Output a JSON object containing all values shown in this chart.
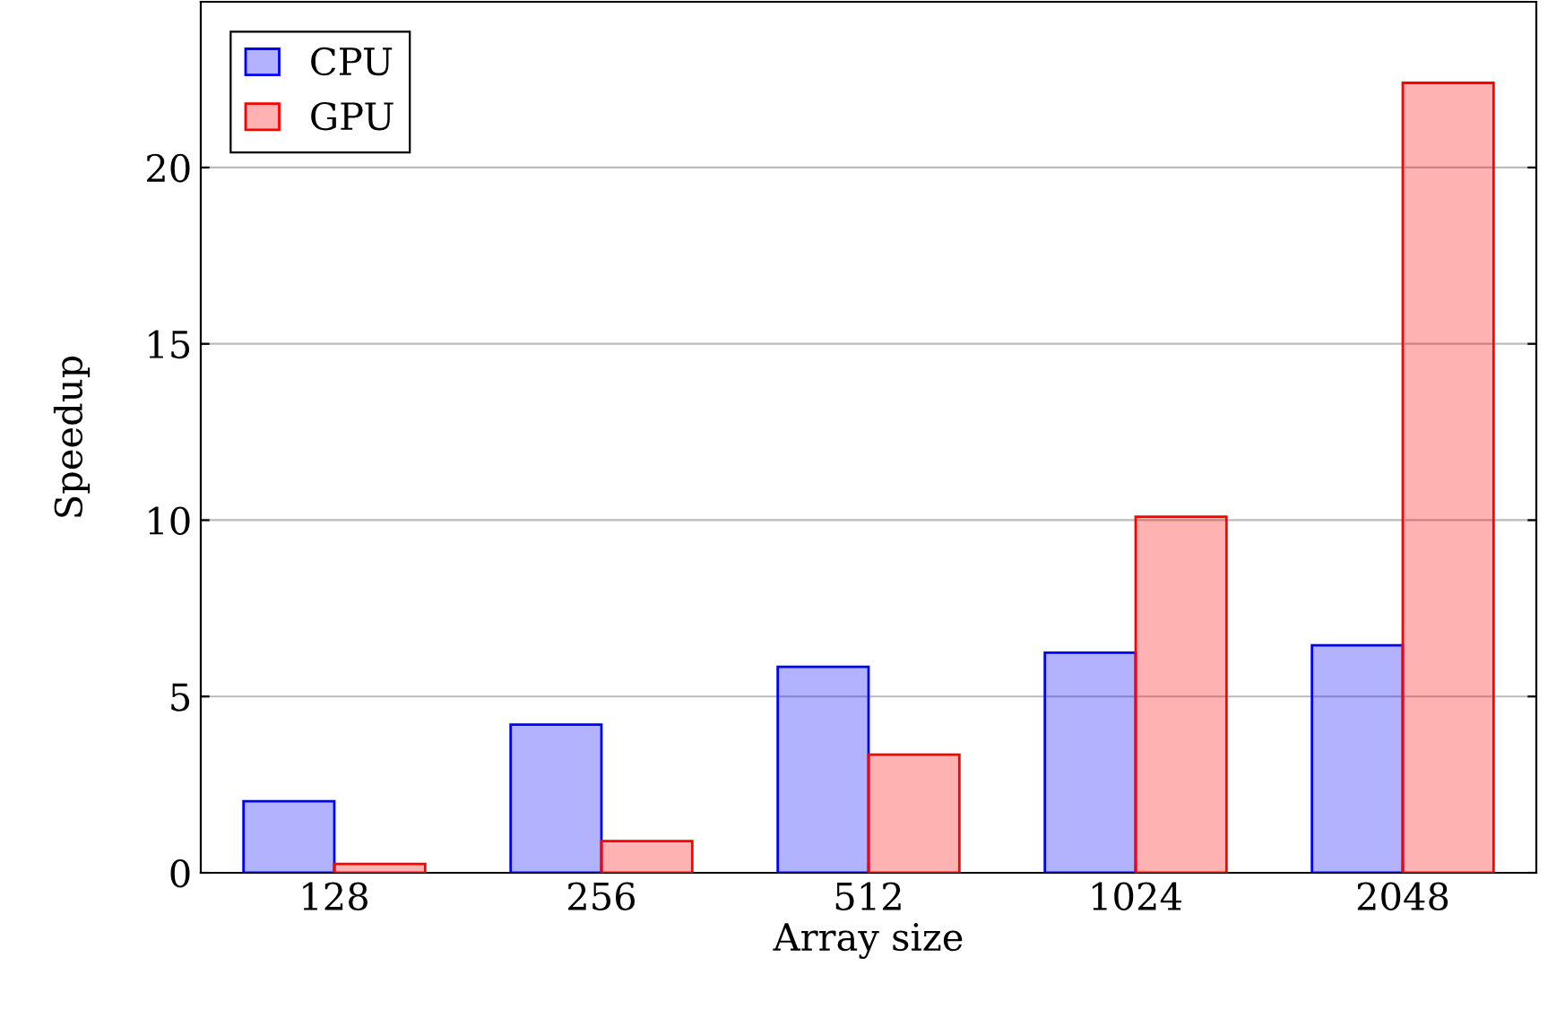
{
  "chart_data": {
    "type": "bar",
    "xlabel": "Array size",
    "ylabel": "Speedup",
    "categories": [
      "128",
      "256",
      "512",
      "1024",
      "2048"
    ],
    "series": [
      {
        "name": "CPU",
        "color": "#0000ff",
        "values": [
          2.03,
          4.2,
          5.84,
          6.24,
          6.45
        ]
      },
      {
        "name": "GPU",
        "color": "#ff0000",
        "values": [
          0.25,
          0.9,
          3.35,
          10.1,
          22.4
        ]
      }
    ],
    "ylim": [
      0,
      24.7
    ],
    "yticks": [
      0,
      5,
      10,
      15,
      20
    ],
    "grid": "y",
    "legend": "top left"
  }
}
